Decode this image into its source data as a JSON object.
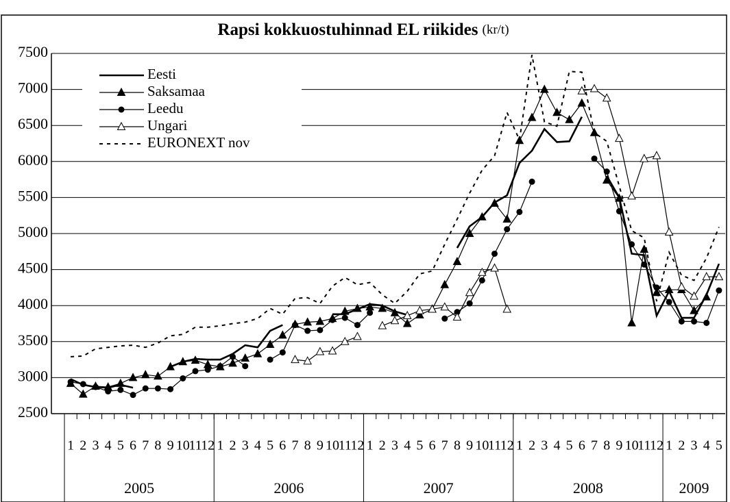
{
  "chart_data": {
    "type": "line",
    "title": "Rapsi kokkuostuhinnad EL riikides",
    "title_unit": "(kr/t)",
    "categories": [
      "1",
      "2",
      "3",
      "4",
      "5",
      "6",
      "7",
      "8",
      "9",
      "10",
      "11",
      "12",
      "1",
      "2",
      "3",
      "4",
      "5",
      "6",
      "7",
      "8",
      "9",
      "10",
      "11",
      "12",
      "1",
      "2",
      "3",
      "4",
      "5",
      "6",
      "7",
      "8",
      "9",
      "10",
      "11",
      "12",
      "1",
      "2",
      "3",
      "4",
      "5",
      "6",
      "7",
      "8",
      "9",
      "10",
      "11",
      "12",
      "1",
      "2",
      "3",
      "4",
      "5"
    ],
    "years": [
      "2005",
      "2006",
      "2007",
      "2008",
      "2009"
    ],
    "ylim": [
      2500,
      7500
    ],
    "yticks": [
      2500,
      3000,
      3500,
      4000,
      4500,
      5000,
      5500,
      6000,
      6500,
      7000,
      7500
    ],
    "grid": true,
    "legend": "upper left",
    "series": [
      {
        "name": "Eesti",
        "color": "#000000",
        "marker": "none",
        "style": "solid",
        "line_width": 2.6,
        "values": [
          2980,
          2900,
          2870,
          2860,
          2900,
          2860,
          null,
          null,
          3150,
          3220,
          3260,
          3250,
          3250,
          3330,
          3450,
          3420,
          3650,
          3730,
          null,
          null,
          null,
          3880,
          3880,
          3950,
          4020,
          4000,
          3920,
          3870,
          null,
          null,
          null,
          4800,
          5100,
          5230,
          5430,
          5530,
          5980,
          6150,
          6450,
          6270,
          6280,
          6620,
          null,
          5800,
          5500,
          4720,
          4700,
          3860,
          4200,
          3830,
          3830,
          4150,
          4580
        ]
      },
      {
        "name": "Saksamaa",
        "color": "#000000",
        "marker": "triangle",
        "style": "solid",
        "line_width": 1.2,
        "values": [
          2920,
          2770,
          2880,
          2870,
          2920,
          3000,
          3040,
          3020,
          3150,
          3220,
          3240,
          3180,
          3150,
          3200,
          3270,
          3330,
          3460,
          3590,
          3740,
          3770,
          3780,
          3820,
          3920,
          3960,
          3980,
          3960,
          3900,
          3750,
          3870,
          3950,
          4290,
          4610,
          5000,
          5230,
          5420,
          5200,
          6290,
          6610,
          7000,
          6680,
          6580,
          6810,
          6400,
          5740,
          5490,
          3760,
          4780,
          4180,
          4220,
          4220,
          3930,
          4120,
          null
        ]
      },
      {
        "name": "Leedu",
        "color": "#000000",
        "marker": "circle",
        "style": "solid",
        "line_width": 1.2,
        "values": [
          2940,
          2910,
          2870,
          2810,
          2830,
          2760,
          2850,
          2850,
          2840,
          2990,
          3090,
          3110,
          3160,
          3290,
          3160,
          null,
          3250,
          3350,
          3730,
          3650,
          3660,
          3800,
          3830,
          3730,
          3900,
          null,
          null,
          null,
          null,
          null,
          3820,
          3910,
          4030,
          4350,
          4720,
          5060,
          5300,
          5720,
          null,
          null,
          null,
          null,
          6040,
          5860,
          5310,
          4850,
          4570,
          4250,
          4050,
          3780,
          3780,
          3760,
          4210
        ]
      },
      {
        "name": "Ungari",
        "color": "#000000",
        "marker": "open-triangle",
        "style": "solid",
        "line_width": 1.2,
        "values": [
          null,
          null,
          null,
          null,
          null,
          null,
          null,
          null,
          null,
          null,
          null,
          null,
          null,
          null,
          null,
          null,
          null,
          null,
          3250,
          3230,
          3360,
          3370,
          3500,
          3570,
          null,
          3720,
          3790,
          3860,
          3930,
          3950,
          3980,
          3840,
          4180,
          4460,
          4520,
          3950,
          null,
          null,
          null,
          null,
          null,
          6980,
          7010,
          6880,
          6320,
          5520,
          6040,
          6080,
          5020,
          4260,
          4130,
          4400,
          4400
        ]
      },
      {
        "name": "EURONEXT nov",
        "color": "#000000",
        "marker": "none",
        "style": "dashed",
        "line_width": 2,
        "values": [
          3290,
          3300,
          3400,
          3420,
          3440,
          3450,
          3420,
          3480,
          3580,
          3600,
          3700,
          3700,
          3720,
          3750,
          3770,
          3820,
          3960,
          3880,
          4100,
          4110,
          4030,
          4270,
          4390,
          4290,
          4320,
          4150,
          4030,
          4200,
          4440,
          4480,
          4850,
          5200,
          5560,
          5880,
          6080,
          6680,
          6300,
          7480,
          6550,
          6490,
          7250,
          7240,
          6400,
          6280,
          5660,
          5040,
          4940,
          4060,
          4740,
          4420,
          4350,
          4660,
          5090
        ]
      }
    ]
  }
}
